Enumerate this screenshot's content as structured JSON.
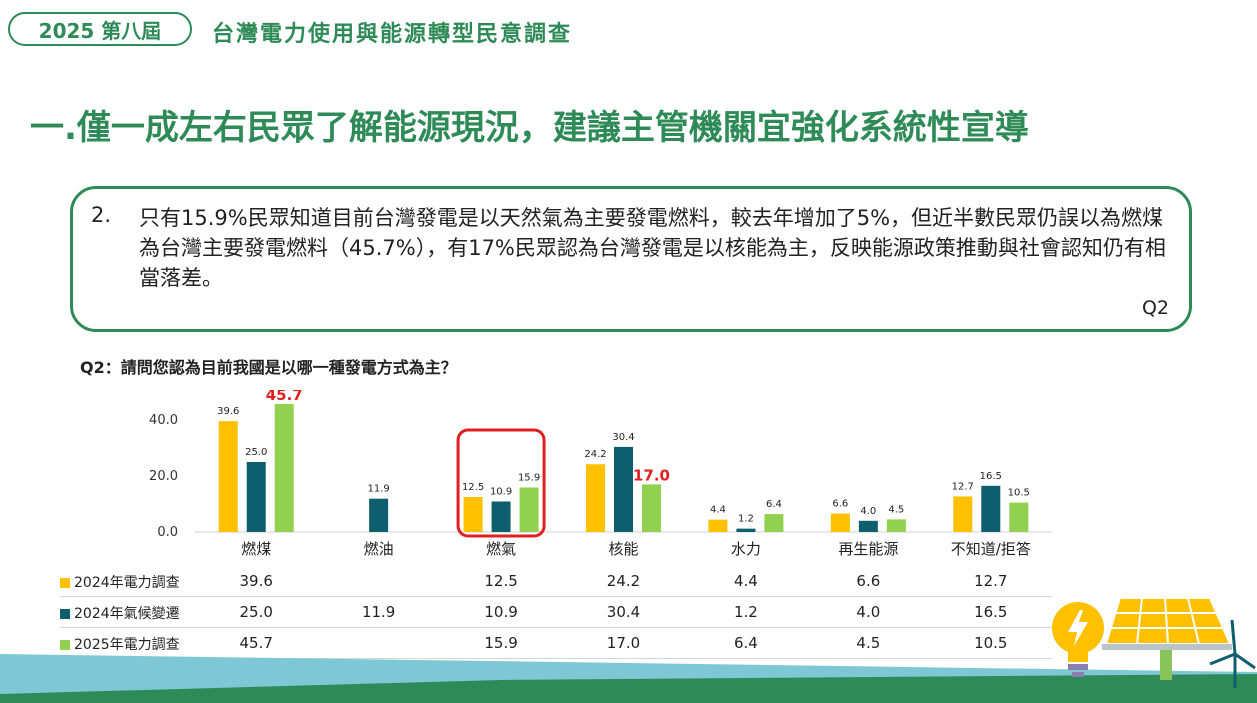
{
  "header": {
    "edition": "2025 第八屆",
    "survey_name": "台灣電力使用與能源轉型民意調查"
  },
  "headline": "一.僅一成左右民眾了解能源現況，建議主管機關宜強化系統性宣導",
  "summary": {
    "number": "2.",
    "text": "只有15.9%民眾知道目前台灣發電是以天然氣為主要發電燃料，較去年增加了5%，但近半數民眾仍誤以為燃煤為台灣主要發電燃料（45.7%），有17%民眾認為台灣發電是以核能為主，反映能源政策推動與社會認知仍有相當落差。",
    "ref": "Q2"
  },
  "question": "Q2：請問您認為目前我國是以哪一種發電方式為主？",
  "colors": {
    "green_title": "#2e8b57",
    "series_2024_power": "#ffc000",
    "series_2024_climate": "#0e5f6e",
    "series_2025_power": "#92d050",
    "highlight_label": "#e02020",
    "highlight_box": "#e02020"
  },
  "chart_data": {
    "type": "bar",
    "categories": [
      "燃煤",
      "燃油",
      "燃氣",
      "核能",
      "水力",
      "再生能源",
      "不知道/拒答"
    ],
    "series": [
      {
        "name": "2024年電力調查",
        "color": "#ffc000",
        "values": [
          39.6,
          null,
          12.5,
          24.2,
          4.4,
          6.6,
          12.7
        ]
      },
      {
        "name": "2024年氣候變遷",
        "color": "#0e5f6e",
        "values": [
          25.0,
          11.9,
          10.9,
          30.4,
          1.2,
          4.0,
          16.5
        ]
      },
      {
        "name": "2025年電力調查",
        "color": "#92d050",
        "values": [
          45.7,
          null,
          15.9,
          17.0,
          6.4,
          4.5,
          10.5
        ]
      }
    ],
    "yticks": [
      "0.0",
      "20.0",
      "40.0"
    ],
    "ylim": [
      0,
      50
    ],
    "highlighted_labels": [
      "45.7",
      "17.0"
    ],
    "highlighted_category": "燃氣"
  },
  "table": {
    "rows": [
      {
        "label": "2024年電力調查",
        "cells": [
          "39.6",
          "",
          "12.5",
          "24.2",
          "4.4",
          "6.6",
          "12.7"
        ]
      },
      {
        "label": "2024年氣候變遷",
        "cells": [
          "25.0",
          "11.9",
          "10.9",
          "30.4",
          "1.2",
          "4.0",
          "16.5"
        ]
      },
      {
        "label": "2025年電力調查",
        "cells": [
          "45.7",
          "",
          "15.9",
          "17.0",
          "6.4",
          "4.5",
          "10.5"
        ]
      }
    ]
  }
}
